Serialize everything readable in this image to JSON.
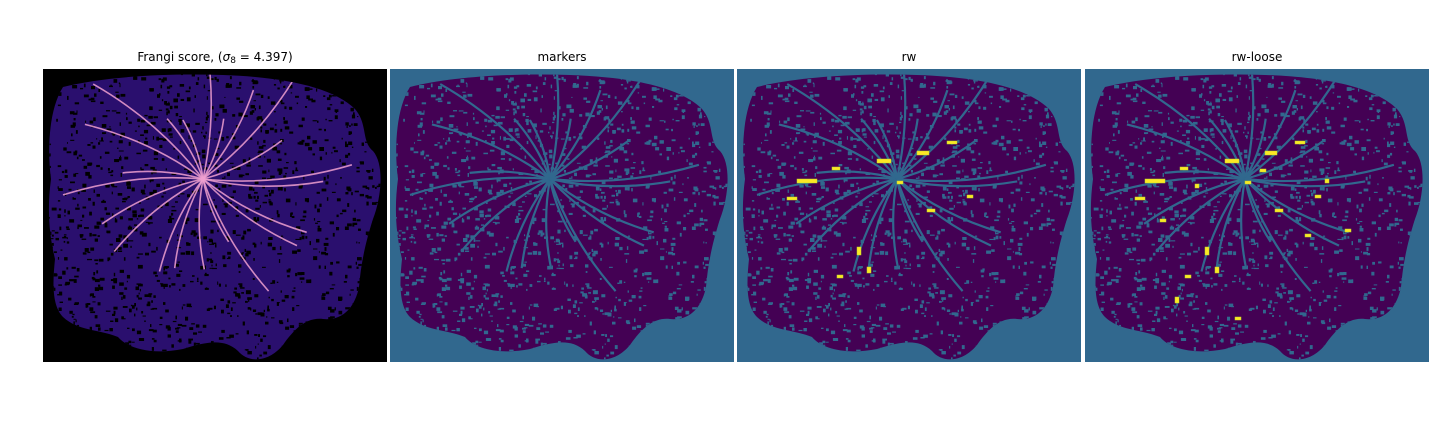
{
  "panels": [
    {
      "title_prefix": "Frangi score, (",
      "title_sigma": "σ",
      "title_sub": "8",
      "title_suffix": " = 4.397)",
      "bg": "#000000",
      "tissue": "#2a0f6e",
      "pores": "#000000",
      "vessels": "#f0a0d0"
    },
    {
      "title": "markers",
      "bg": "#31688e",
      "tissue": "#440154",
      "pores": "#31688e",
      "vessels": "#31688e"
    },
    {
      "title": "rw",
      "bg": "#31688e",
      "tissue": "#440154",
      "pores": "#31688e",
      "vessels": "#31688e",
      "highlights": "#fde725"
    },
    {
      "title": "rw-loose",
      "bg": "#31688e",
      "tissue": "#440154",
      "pores": "#31688e",
      "vessels": "#31688e",
      "highlights": "#fde725"
    }
  ]
}
